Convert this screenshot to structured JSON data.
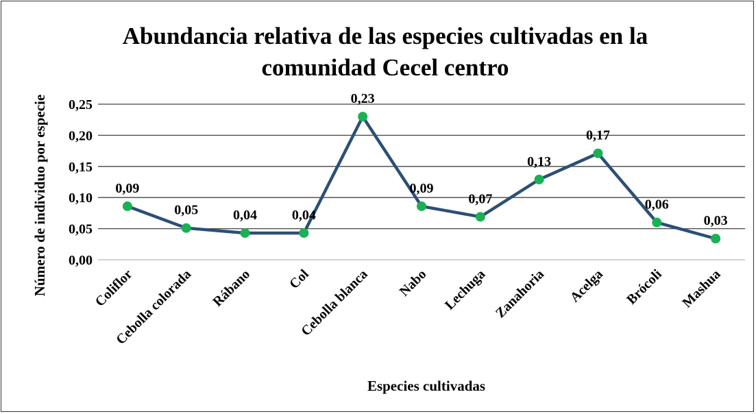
{
  "chart_data": {
    "type": "line",
    "title": "Abundancia relativa de las especies cultivadas en la comunidad Cecel centro",
    "x_label": "Especies cultivadas",
    "y_label": "Número de individuo por especie",
    "categories": [
      "Coliflor",
      "Cebolla colorada",
      "Rábano",
      "Col",
      "Cebolla blanca",
      "Nabo",
      "Lechuga",
      "Zanahoria",
      "Acelga",
      "Brócoli",
      "Mashua"
    ],
    "series": [
      {
        "color": "#2b4f76",
        "marker_color": "#1bb055",
        "values": [
          0.086,
          0.051,
          0.043,
          0.043,
          0.23,
          0.086,
          0.069,
          0.129,
          0.171,
          0.06,
          0.034
        ],
        "value_labels": [
          "0,09",
          "0,05",
          "0,04",
          "0,04",
          "0,23",
          "0,09",
          "0,07",
          "0,13",
          "0,17",
          "0,06",
          "0,03"
        ]
      }
    ],
    "ylim": [
      0,
      0.25
    ],
    "yticks": [
      {
        "value": 0,
        "label": "0,00"
      },
      {
        "value": 0.05,
        "label": "0,05"
      },
      {
        "value": 0.1,
        "label": "0,10"
      },
      {
        "value": 0.15,
        "label": "0,15"
      },
      {
        "value": 0.2,
        "label": "0,20"
      },
      {
        "value": 0.25,
        "label": "0,25"
      }
    ],
    "grid": true
  }
}
